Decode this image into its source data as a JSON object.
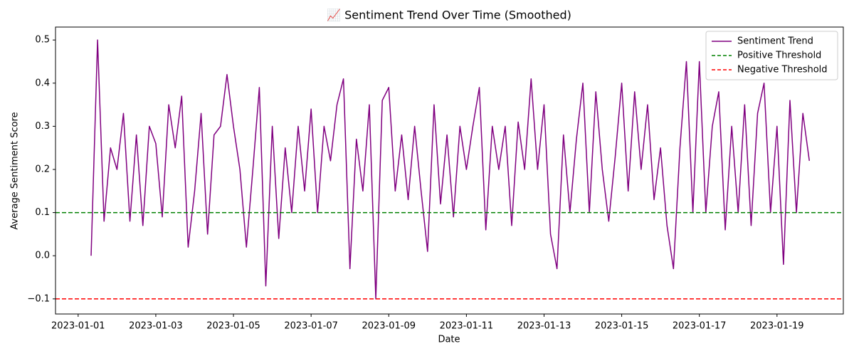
{
  "chart_data": {
    "type": "line",
    "title": "📈 Sentiment Trend Over Time (Smoothed)",
    "xlabel": "Date",
    "ylabel": "Average Sentiment Score",
    "x": [
      "2023-01-01 08:00",
      "2023-01-01 12:00",
      "2023-01-01 16:00",
      "2023-01-01 20:00",
      "2023-01-02 00:00",
      "2023-01-02 04:00",
      "2023-01-02 08:00",
      "2023-01-02 12:00",
      "2023-01-02 16:00",
      "2023-01-02 20:00",
      "2023-01-03 00:00",
      "2023-01-03 04:00",
      "2023-01-03 08:00",
      "2023-01-03 12:00",
      "2023-01-03 16:00",
      "2023-01-03 20:00",
      "2023-01-04 00:00",
      "2023-01-04 04:00",
      "2023-01-04 08:00",
      "2023-01-04 12:00",
      "2023-01-04 16:00",
      "2023-01-04 20:00",
      "2023-01-05 00:00",
      "2023-01-05 04:00",
      "2023-01-05 08:00",
      "2023-01-05 12:00",
      "2023-01-05 16:00",
      "2023-01-05 20:00",
      "2023-01-06 00:00",
      "2023-01-06 04:00",
      "2023-01-06 08:00",
      "2023-01-06 12:00",
      "2023-01-06 16:00",
      "2023-01-06 20:00",
      "2023-01-07 00:00",
      "2023-01-07 04:00",
      "2023-01-07 08:00",
      "2023-01-07 12:00",
      "2023-01-07 16:00",
      "2023-01-07 20:00",
      "2023-01-08 00:00",
      "2023-01-08 04:00",
      "2023-01-08 08:00",
      "2023-01-08 12:00",
      "2023-01-08 16:00",
      "2023-01-08 20:00",
      "2023-01-09 00:00",
      "2023-01-09 04:00",
      "2023-01-09 08:00",
      "2023-01-09 12:00",
      "2023-01-09 16:00",
      "2023-01-09 20:00",
      "2023-01-10 00:00",
      "2023-01-10 04:00",
      "2023-01-10 08:00",
      "2023-01-10 12:00",
      "2023-01-10 16:00",
      "2023-01-10 20:00",
      "2023-01-11 00:00",
      "2023-01-11 04:00",
      "2023-01-11 08:00",
      "2023-01-11 12:00",
      "2023-01-11 16:00",
      "2023-01-11 20:00",
      "2023-01-12 00:00",
      "2023-01-12 04:00",
      "2023-01-12 08:00",
      "2023-01-12 12:00",
      "2023-01-12 16:00",
      "2023-01-12 20:00",
      "2023-01-13 00:00",
      "2023-01-13 04:00",
      "2023-01-13 08:00",
      "2023-01-13 12:00",
      "2023-01-13 16:00",
      "2023-01-13 20:00",
      "2023-01-14 00:00",
      "2023-01-14 04:00",
      "2023-01-14 08:00",
      "2023-01-14 12:00",
      "2023-01-14 16:00",
      "2023-01-14 20:00",
      "2023-01-15 00:00",
      "2023-01-15 04:00",
      "2023-01-15 08:00",
      "2023-01-15 12:00",
      "2023-01-15 16:00",
      "2023-01-15 20:00",
      "2023-01-16 00:00",
      "2023-01-16 04:00",
      "2023-01-16 08:00",
      "2023-01-16 12:00",
      "2023-01-16 16:00",
      "2023-01-16 20:00",
      "2023-01-17 00:00",
      "2023-01-17 04:00",
      "2023-01-17 08:00",
      "2023-01-17 12:00",
      "2023-01-17 16:00",
      "2023-01-17 20:00",
      "2023-01-18 00:00",
      "2023-01-18 04:00",
      "2023-01-18 08:00",
      "2023-01-18 12:00",
      "2023-01-18 16:00",
      "2023-01-18 20:00",
      "2023-01-19 00:00",
      "2023-01-19 04:00",
      "2023-01-19 08:00",
      "2023-01-19 12:00",
      "2023-01-19 16:00",
      "2023-01-19 20:00"
    ],
    "series": [
      {
        "name": "Sentiment Trend",
        "color": "#800080",
        "values": [
          0.0,
          0.5,
          0.08,
          0.25,
          0.2,
          0.33,
          0.08,
          0.28,
          0.07,
          0.3,
          0.26,
          0.09,
          0.35,
          0.25,
          0.37,
          0.02,
          0.15,
          0.33,
          0.05,
          0.28,
          0.3,
          0.42,
          0.3,
          0.2,
          0.02,
          0.2,
          0.39,
          -0.07,
          0.3,
          0.04,
          0.25,
          0.1,
          0.3,
          0.15,
          0.34,
          0.1,
          0.3,
          0.22,
          0.35,
          0.41,
          -0.03,
          0.27,
          0.15,
          0.35,
          -0.1,
          0.36,
          0.39,
          0.15,
          0.28,
          0.13,
          0.3,
          0.15,
          0.01,
          0.35,
          0.12,
          0.28,
          0.09,
          0.3,
          0.2,
          0.3,
          0.39,
          0.06,
          0.3,
          0.2,
          0.3,
          0.07,
          0.31,
          0.2,
          0.41,
          0.2,
          0.35,
          0.05,
          -0.03,
          0.28,
          0.1,
          0.27,
          0.4,
          0.1,
          0.38,
          0.2,
          0.08,
          0.23,
          0.4,
          0.15,
          0.38,
          0.2,
          0.35,
          0.13,
          0.25,
          0.07,
          -0.03,
          0.25,
          0.45,
          0.1,
          0.45,
          0.1,
          0.3,
          0.38,
          0.06,
          0.3,
          0.1,
          0.35,
          0.07,
          0.33,
          0.4,
          0.1,
          0.3,
          -0.02,
          0.36,
          0.1,
          0.33,
          0.22
        ]
      }
    ],
    "thresholds": [
      {
        "name": "Positive Threshold",
        "color": "#008000",
        "value": 0.1
      },
      {
        "name": "Negative Threshold",
        "color": "#ff0000",
        "value": -0.1
      }
    ],
    "xlim": [
      "2022-12-31 10:00",
      "2023-01-20 17:00"
    ],
    "xticks": [
      "2023-01-01",
      "2023-01-03",
      "2023-01-05",
      "2023-01-07",
      "2023-01-09",
      "2023-01-11",
      "2023-01-13",
      "2023-01-15",
      "2023-01-17",
      "2023-01-19"
    ],
    "ylim": [
      -0.135,
      0.53
    ],
    "yticks": [
      {
        "value": -0.1,
        "label": "−0.1"
      },
      {
        "value": 0,
        "label": "0.0"
      },
      0.1,
      0.2,
      0.3,
      0.4,
      0.5
    ],
    "legend": "upper right",
    "grid": false
  }
}
